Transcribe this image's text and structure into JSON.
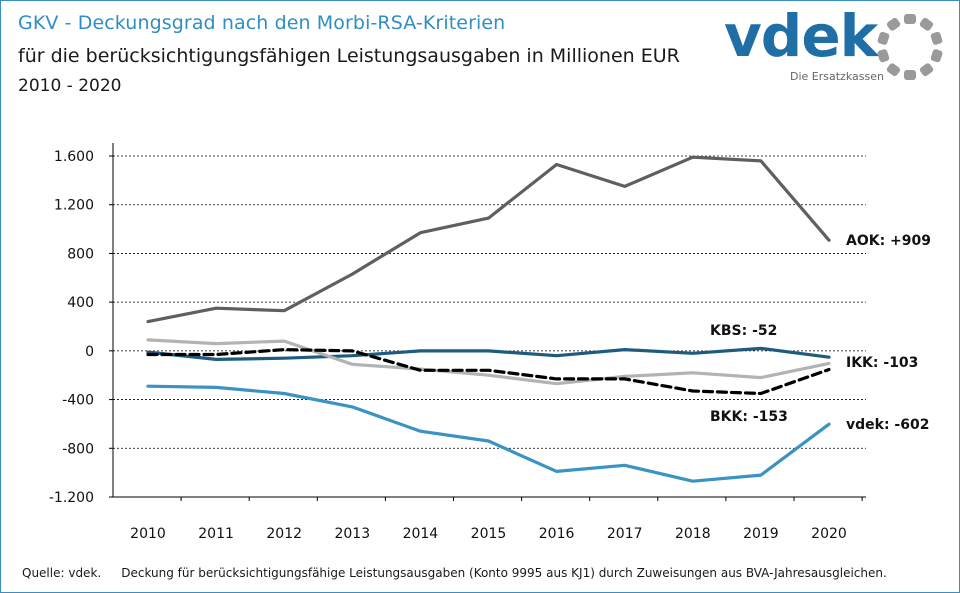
{
  "header": {
    "title": "GKV - Deckungsgrad nach den Morbi-RSA-Kriterien",
    "subtitle": "für die berücksichtigungsfähigen Leistungsausgaben in Millionen EUR",
    "period": "2010 - 2020"
  },
  "logo": {
    "word": "vdek",
    "tagline": "Die Ersatzkassen"
  },
  "footer": {
    "source": "Quelle: vdek.",
    "note": "Deckung für berücksichtigungsfähige Leistungsausgaben (Konto 9995 aus KJ1) durch Zuweisungen aus BVA-Jahresausgleichen."
  },
  "colors": {
    "aok": "#5f5f5f",
    "ikk": "#b3b3b3",
    "bkk": "#000000",
    "kbs": "#1f5b7e",
    "vdek": "#3a93c4",
    "brand": "#1f6fa6",
    "title": "#2f8fc3"
  },
  "chart_data": {
    "type": "line",
    "x": [
      "2010",
      "2011",
      "2012",
      "2013",
      "2014",
      "2015",
      "2016",
      "2017",
      "2018",
      "2019",
      "2020"
    ],
    "ylim": [
      -1200,
      1600
    ],
    "yticks": [
      1600,
      1200,
      800,
      400,
      0,
      -400,
      -800,
      -1200
    ],
    "ytick_labels": [
      "1.600",
      "1.200",
      "800",
      "400",
      "0",
      "-400",
      "-800",
      "-1.200"
    ],
    "grid": true,
    "legend": "end-of-line labels",
    "series": [
      {
        "key": "aok",
        "label": "AOK: +909",
        "style": "solid",
        "values": [
          240,
          350,
          330,
          630,
          970,
          1090,
          1530,
          1350,
          1590,
          1560,
          909
        ]
      },
      {
        "key": "ikk",
        "label": "IKK: -103",
        "style": "solid",
        "values": [
          90,
          60,
          80,
          -110,
          -150,
          -200,
          -270,
          -210,
          -180,
          -220,
          -103
        ]
      },
      {
        "key": "bkk",
        "label": "BKK: -153",
        "style": "dashed",
        "values": [
          -30,
          -30,
          10,
          0,
          -160,
          -160,
          -230,
          -230,
          -330,
          -350,
          -153
        ]
      },
      {
        "key": "kbs",
        "label": "KBS: -52",
        "style": "solid",
        "values": [
          -10,
          -70,
          -60,
          -40,
          0,
          0,
          -40,
          10,
          -20,
          20,
          -52
        ]
      },
      {
        "key": "vdek",
        "label": "vdek: -602",
        "style": "solid",
        "values": [
          -290,
          -300,
          -350,
          -460,
          -660,
          -740,
          -990,
          -940,
          -1070,
          -1020,
          -602
        ]
      }
    ]
  }
}
